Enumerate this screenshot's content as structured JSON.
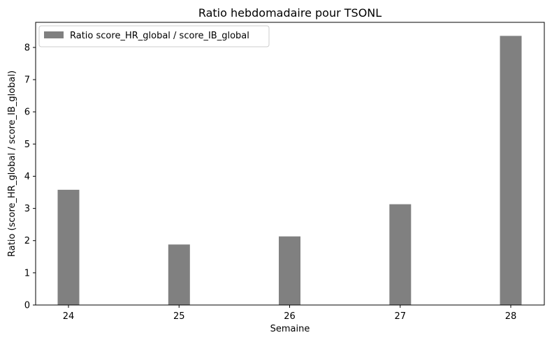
{
  "chart_data": {
    "type": "bar",
    "title": "Ratio hebdomadaire pour TSONL",
    "xlabel": "Semaine",
    "ylabel": "Ratio (score_HR_global / score_IB_global)",
    "categories": [
      "24",
      "25",
      "26",
      "27",
      "28"
    ],
    "series": [
      {
        "name": "Ratio score_HR_global / score_IB_global",
        "values": [
          3.58,
          1.88,
          2.13,
          3.13,
          8.36
        ],
        "color": "#808080"
      }
    ],
    "ylim": [
      0,
      8.78
    ],
    "yticks": [
      0,
      1,
      2,
      3,
      4,
      5,
      6,
      7,
      8
    ],
    "grid": false,
    "legend_position": "top-left"
  }
}
